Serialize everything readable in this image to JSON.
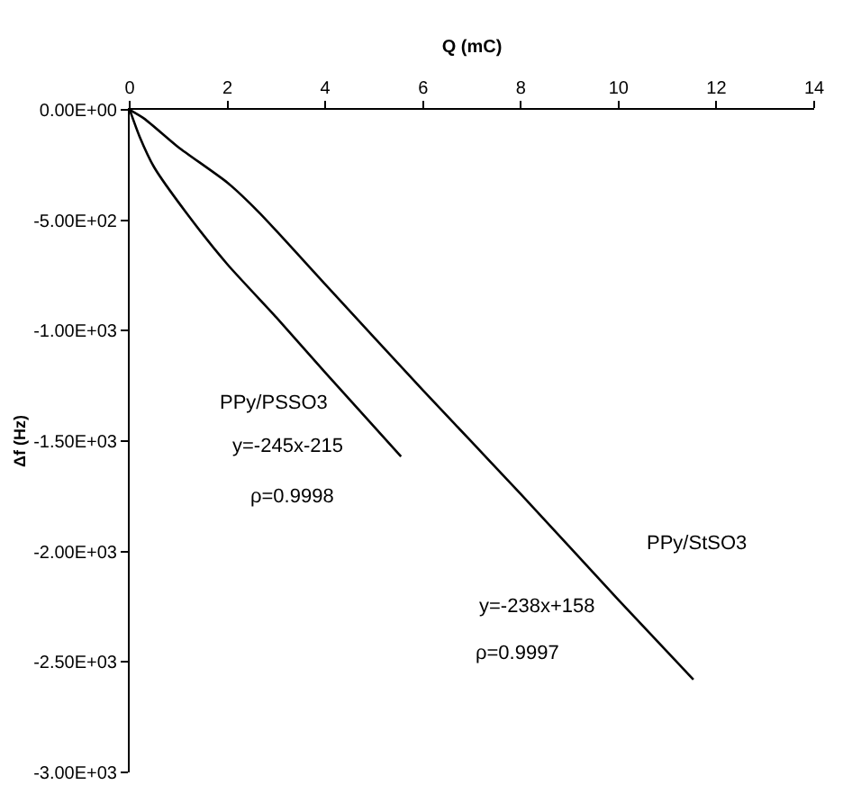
{
  "chart_data": {
    "type": "line",
    "xlabel": "Q (mC)",
    "ylabel": "Δf (Hz)",
    "xlim": [
      0,
      14
    ],
    "xticks": [
      0,
      2,
      4,
      6,
      8,
      10,
      12,
      14
    ],
    "ylim": [
      -3000,
      0
    ],
    "yticks": [
      {
        "value": 0,
        "label": "0.00E+00"
      },
      {
        "value": -500,
        "label": "-5.00E+02"
      },
      {
        "value": -1000,
        "label": "-1.00E+03"
      },
      {
        "value": -1500,
        "label": "-1.50E+03"
      },
      {
        "value": -2000,
        "label": "-2.00E+03"
      },
      {
        "value": -2500,
        "label": "-2.50E+03"
      },
      {
        "value": -3000,
        "label": "-3.00E+03"
      }
    ],
    "marker": "none",
    "line_style": "solid",
    "series": [
      {
        "color": "#000000",
        "x": [
          0,
          0.2,
          0.5,
          1.17,
          2,
          3,
          4,
          5.55
        ],
        "values": [
          0,
          -120,
          -260,
          -470,
          -700,
          -940,
          -1190,
          -1570
        ]
      },
      {
        "color": "#000000",
        "x": [
          0,
          0.3,
          1,
          2,
          2.67,
          4,
          6,
          8,
          10,
          11.53
        ],
        "values": [
          0,
          -40,
          -170,
          -330,
          -470,
          -790,
          -1270,
          -1740,
          -2220,
          -2580
        ]
      }
    ],
    "annotations": [
      "PPy/PSSO3",
      "y=-245x-215",
      "ρ=0.9998",
      "PPy/StSO3",
      "y=-238x+158",
      "ρ=0.9997"
    ]
  }
}
